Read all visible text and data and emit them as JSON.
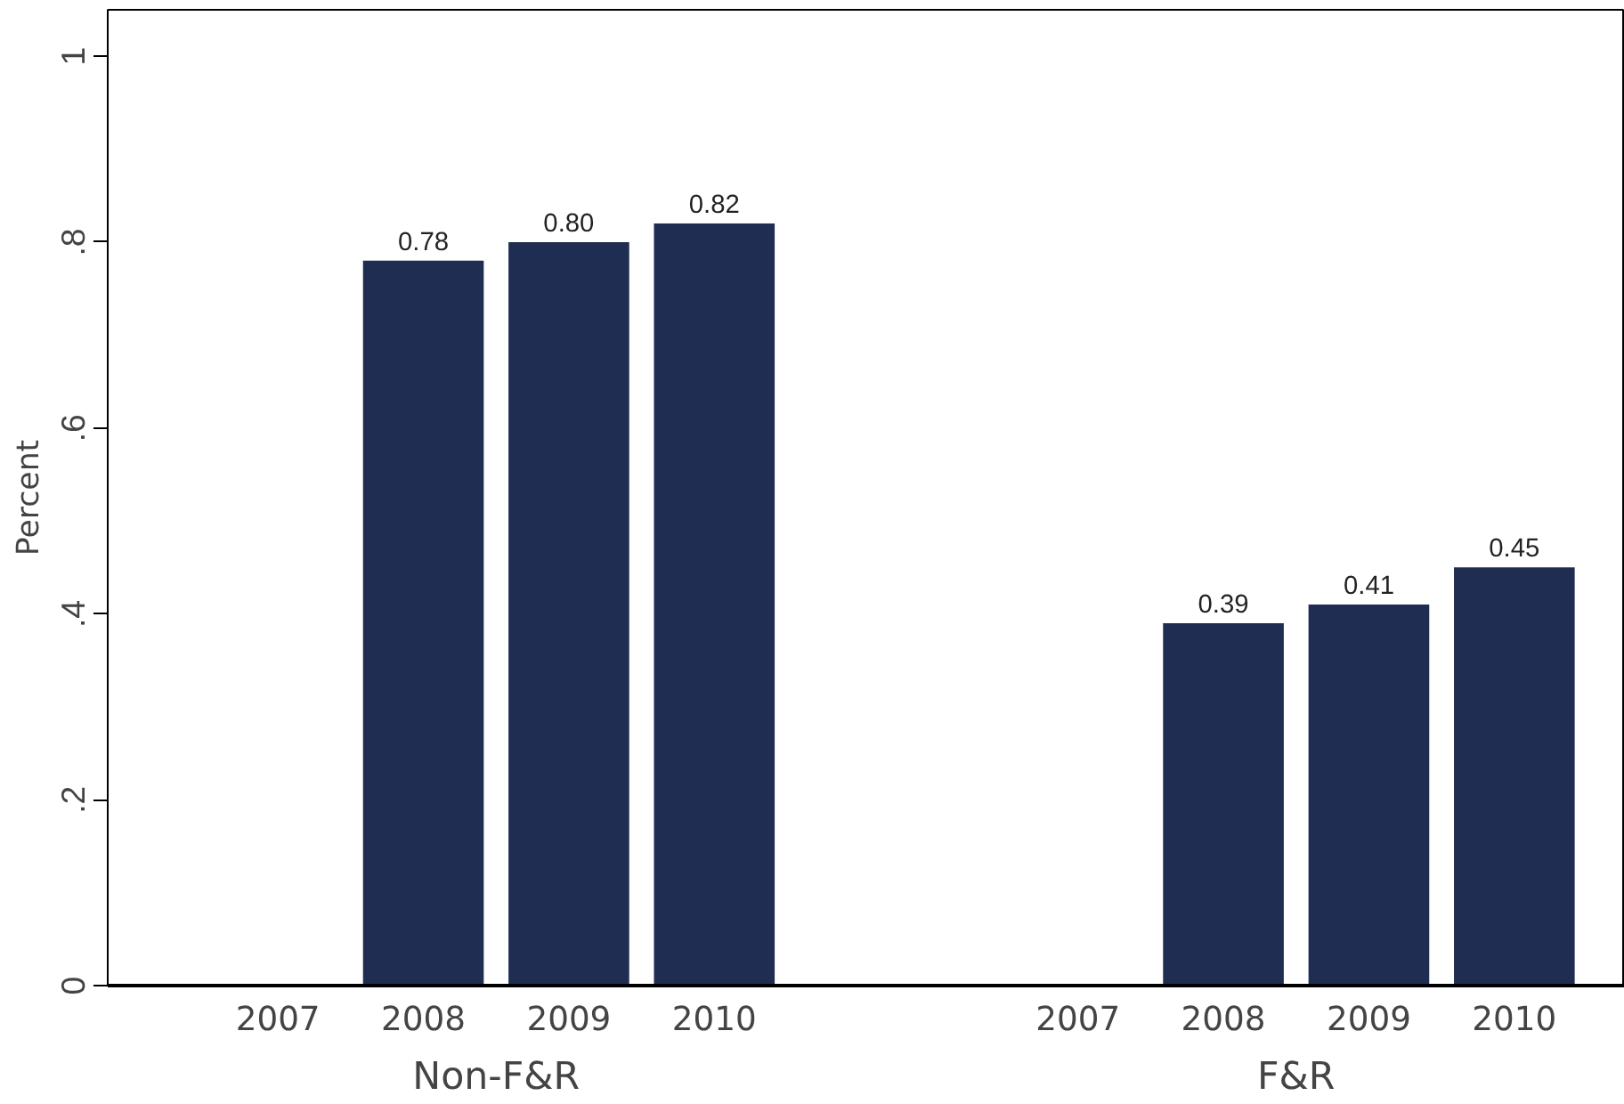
{
  "chart_data": {
    "type": "bar",
    "ylabel": "Percent",
    "categories": [
      "2007",
      "2008",
      "2009",
      "2010",
      "2007",
      "2008",
      "2009",
      "2010"
    ],
    "values": [
      null,
      0.78,
      0.8,
      0.82,
      null,
      0.39,
      0.41,
      0.45
    ],
    "value_labels": [
      null,
      "0.78",
      "0.80",
      "0.82",
      null,
      "0.39",
      "0.41",
      "0.45"
    ],
    "color": "#1f2d52",
    "ylim": [
      0,
      1.05
    ],
    "yticks": [
      {
        "value": 0,
        "label": "0"
      },
      {
        "value": 0.2,
        "label": ".2"
      },
      {
        "value": 0.4,
        "label": ".4"
      },
      {
        "value": 0.6,
        "label": ".6"
      },
      {
        "value": 0.8,
        "label": ".8"
      },
      {
        "value": 1,
        "label": "1"
      }
    ],
    "annotations": [
      "Non-F&R",
      "F&R"
    ],
    "grid": false
  }
}
